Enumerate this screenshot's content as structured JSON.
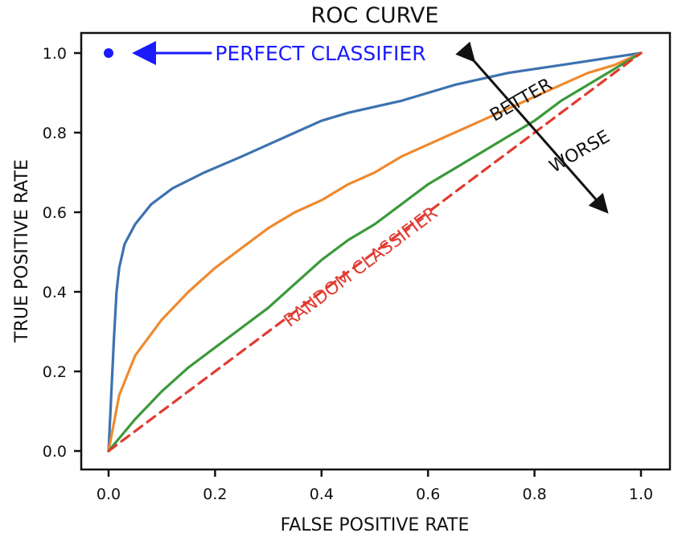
{
  "chart_data": {
    "type": "line",
    "title": "ROC CURVE",
    "xlabel": "FALSE POSITIVE RATE",
    "ylabel": "TRUE POSITIVE RATE",
    "xlim": [
      -0.05,
      1.05
    ],
    "ylim": [
      -0.05,
      1.05
    ],
    "x_ticks": [
      0.0,
      0.2,
      0.4,
      0.6,
      0.8,
      1.0
    ],
    "y_ticks": [
      0.0,
      0.2,
      0.4,
      0.6,
      0.8,
      1.0
    ],
    "x_tick_labels": [
      "0.0",
      "0.2",
      "0.4",
      "0.6",
      "0.8",
      "1.0"
    ],
    "y_tick_labels": [
      "0.0",
      "0.2",
      "0.4",
      "0.6",
      "0.8",
      "1.0"
    ],
    "grid": false,
    "legend": "none",
    "series": [
      {
        "color": "#3d72b0",
        "style": "solid",
        "x": [
          0.0,
          0.01,
          0.015,
          0.02,
          0.03,
          0.05,
          0.08,
          0.12,
          0.18,
          0.25,
          0.3,
          0.35,
          0.4,
          0.45,
          0.5,
          0.55,
          0.6,
          0.65,
          0.7,
          0.75,
          0.8,
          0.85,
          0.9,
          0.95,
          1.0
        ],
        "y": [
          0.0,
          0.28,
          0.4,
          0.46,
          0.52,
          0.57,
          0.62,
          0.66,
          0.7,
          0.74,
          0.77,
          0.8,
          0.83,
          0.85,
          0.865,
          0.88,
          0.9,
          0.92,
          0.935,
          0.95,
          0.96,
          0.97,
          0.98,
          0.99,
          1.0
        ]
      },
      {
        "color": "#ef8a2f",
        "style": "solid",
        "x": [
          0.0,
          0.02,
          0.05,
          0.1,
          0.15,
          0.2,
          0.25,
          0.3,
          0.35,
          0.4,
          0.45,
          0.5,
          0.55,
          0.6,
          0.65,
          0.7,
          0.75,
          0.8,
          0.85,
          0.9,
          0.95,
          1.0
        ],
        "y": [
          0.0,
          0.14,
          0.24,
          0.33,
          0.4,
          0.46,
          0.51,
          0.56,
          0.6,
          0.63,
          0.67,
          0.7,
          0.74,
          0.77,
          0.8,
          0.83,
          0.86,
          0.89,
          0.92,
          0.95,
          0.97,
          1.0
        ]
      },
      {
        "color": "#3a9a3a",
        "style": "solid",
        "x": [
          0.0,
          0.05,
          0.1,
          0.15,
          0.2,
          0.25,
          0.3,
          0.35,
          0.4,
          0.45,
          0.5,
          0.55,
          0.6,
          0.65,
          0.7,
          0.75,
          0.8,
          0.85,
          0.9,
          0.95,
          1.0
        ],
        "y": [
          0.0,
          0.08,
          0.15,
          0.21,
          0.26,
          0.31,
          0.36,
          0.42,
          0.48,
          0.53,
          0.57,
          0.62,
          0.67,
          0.71,
          0.75,
          0.79,
          0.83,
          0.88,
          0.92,
          0.96,
          1.0
        ]
      },
      {
        "color": "#e03c31",
        "style": "dashed",
        "x": [
          0.0,
          1.0
        ],
        "y": [
          0.0,
          1.0
        ]
      }
    ],
    "points": [
      {
        "x": 0.0,
        "y": 1.0,
        "color": "#1a1aff"
      }
    ],
    "annotations": [
      {
        "text": "PERFECT CLASSIFIER",
        "color": "#1a1aff",
        "arrow_to": [
          0.05,
          1.0
        ],
        "arrow_from": [
          0.2,
          1.0
        ],
        "text_at": [
          0.2,
          1.0
        ]
      },
      {
        "text": "RANDOM CLASSIFIER",
        "color": "#e03c31",
        "text_at": [
          0.34,
          0.31
        ],
        "rotation_deg": -37
      },
      {
        "text": "BETTER",
        "color": "#111111",
        "text_at": [
          0.78,
          0.87
        ],
        "rotation_deg": -30
      },
      {
        "text": "WORSE",
        "color": "#111111",
        "text_at": [
          0.89,
          0.74
        ],
        "rotation_deg": -30
      }
    ],
    "double_arrow": {
      "from": [
        0.68,
        0.99
      ],
      "to": [
        0.93,
        0.61
      ],
      "color": "#111111"
    }
  }
}
